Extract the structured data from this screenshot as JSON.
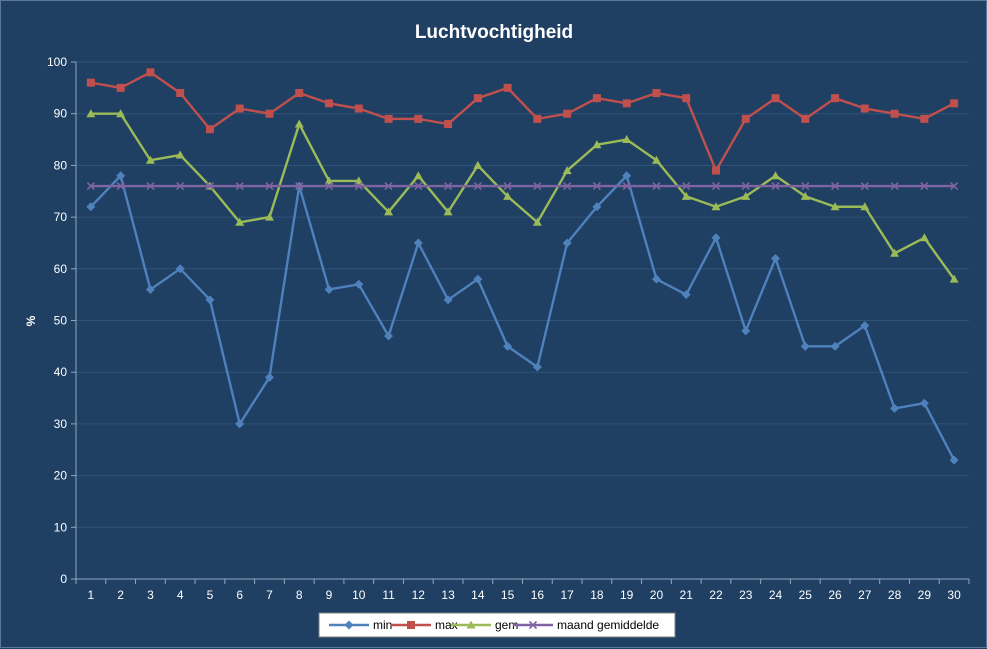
{
  "chart_data": {
    "type": "line",
    "title": "Luchtvochtigheid",
    "ylabel": "%",
    "xlabel": "",
    "ylim": [
      0,
      100
    ],
    "yticks": [
      0,
      10,
      20,
      30,
      40,
      50,
      60,
      70,
      80,
      90,
      100
    ],
    "x": [
      1,
      2,
      3,
      4,
      5,
      6,
      7,
      8,
      9,
      10,
      11,
      12,
      13,
      14,
      15,
      16,
      17,
      18,
      19,
      20,
      21,
      22,
      23,
      24,
      25,
      26,
      27,
      28,
      29,
      30
    ],
    "grid": true,
    "legend_position": "bottom",
    "series": [
      {
        "name": "min",
        "color": "#4f81bd",
        "marker": "diamond",
        "values": [
          72,
          78,
          56,
          60,
          54,
          30,
          39,
          76,
          56,
          57,
          47,
          65,
          54,
          58,
          45,
          41,
          65,
          72,
          78,
          58,
          55,
          66,
          48,
          62,
          45,
          45,
          49,
          33,
          34,
          23
        ]
      },
      {
        "name": "max",
        "color": "#c0504d",
        "marker": "square",
        "values": [
          96,
          95,
          98,
          94,
          87,
          91,
          90,
          94,
          92,
          91,
          89,
          89,
          88,
          93,
          95,
          89,
          90,
          93,
          92,
          94,
          93,
          79,
          89,
          93,
          89,
          93,
          91,
          90,
          89,
          92
        ]
      },
      {
        "name": "gem",
        "color": "#9bbb59",
        "marker": "triangle",
        "values": [
          90,
          90,
          81,
          82,
          76,
          69,
          70,
          88,
          77,
          77,
          71,
          78,
          71,
          80,
          74,
          69,
          79,
          84,
          85,
          81,
          74,
          72,
          74,
          78,
          74,
          72,
          72,
          63,
          66,
          58
        ]
      },
      {
        "name": "maand gemiddelde",
        "color": "#8064a2",
        "marker": "x",
        "values": [
          76,
          76,
          76,
          76,
          76,
          76,
          76,
          76,
          76,
          76,
          76,
          76,
          76,
          76,
          76,
          76,
          76,
          76,
          76,
          76,
          76,
          76,
          76,
          76,
          76,
          76,
          76,
          76,
          76,
          76
        ]
      }
    ]
  }
}
